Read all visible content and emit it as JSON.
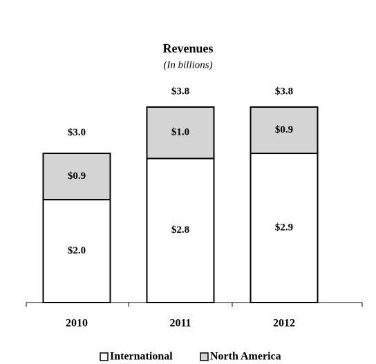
{
  "chart_data": {
    "type": "stacked_bar",
    "title": "Revenues",
    "subtitle": "(In billions)",
    "categories": [
      "2010",
      "2011",
      "2012"
    ],
    "series": [
      {
        "name": "International",
        "color": "#ffffff",
        "values": [
          2.0,
          2.8,
          2.9
        ],
        "value_labels": [
          "$2.0",
          "$2.8",
          "$2.9"
        ]
      },
      {
        "name": "North America",
        "color": "#d4d4d4",
        "values": [
          0.9,
          1.0,
          0.9
        ],
        "value_labels": [
          "$0.9",
          "$1.0",
          "$0.9"
        ]
      }
    ],
    "totals": [
      3.0,
      3.8,
      3.8
    ],
    "total_labels": [
      "$3.0",
      "$3.8",
      "$3.8"
    ]
  }
}
